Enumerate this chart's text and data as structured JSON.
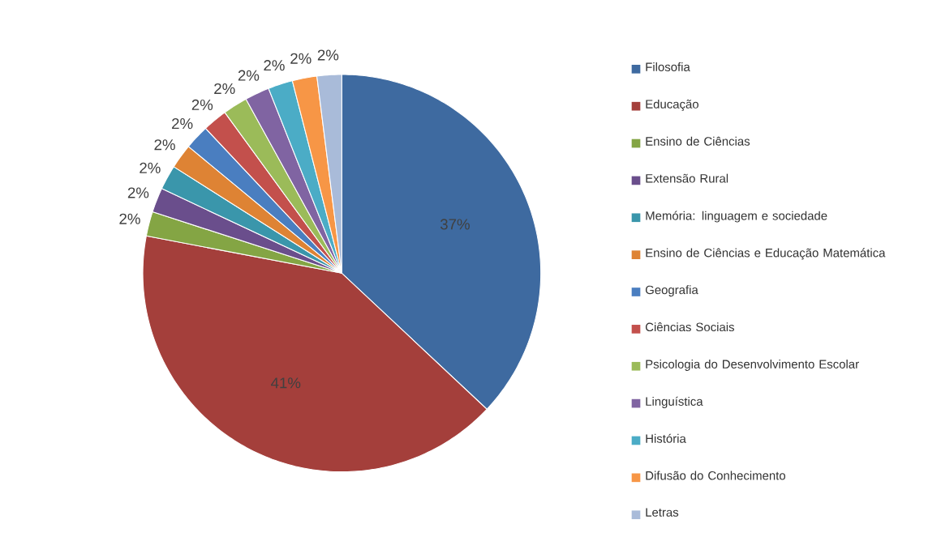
{
  "chart_data": {
    "type": "pie",
    "categories": [
      "Filosofia",
      "Educação",
      "Ensino de Ciências",
      "Extensão Rural",
      "Memória: linguagem e sociedade",
      "Ensino de Ciências e Educação Matemática",
      "Geografia",
      "Ciências Sociais",
      "Psicologia do Desenvolvimento Escolar",
      "Linguística",
      "História",
      "Difusão do Conhecimento",
      "Letras"
    ],
    "values": [
      37,
      41,
      2,
      2,
      2,
      2,
      2,
      2,
      2,
      2,
      2,
      2,
      2
    ],
    "value_labels": [
      "37%",
      "41%",
      "2%",
      "2%",
      "2%",
      "2%",
      "2%",
      "2%",
      "2%",
      "2%",
      "2%",
      "2%",
      "2%"
    ],
    "colors": [
      "#3e6aa0",
      "#a43f3b",
      "#84a544",
      "#6a4e8c",
      "#3a96ab",
      "#de8334",
      "#4a7ec0",
      "#c3504c",
      "#9bbb59",
      "#8064a2",
      "#4bacc6",
      "#f79646",
      "#a9bbd9"
    ],
    "legend": "right"
  }
}
